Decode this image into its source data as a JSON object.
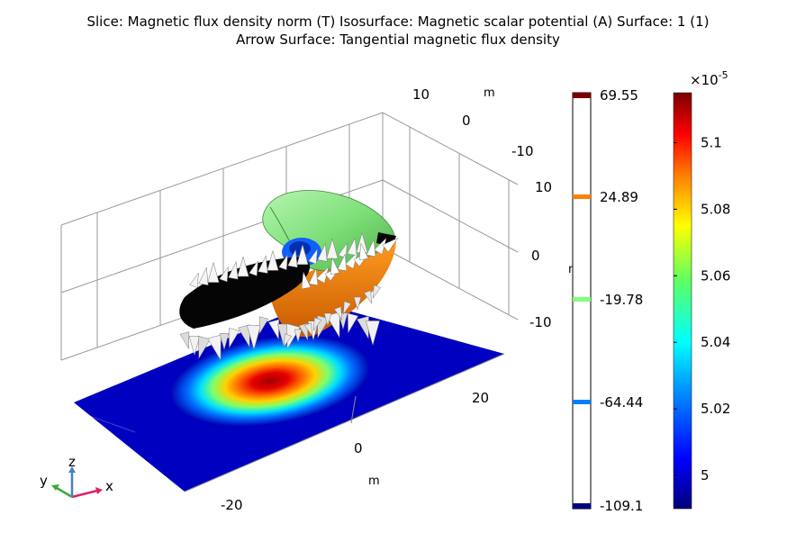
{
  "title": {
    "line1": "Slice: Magnetic flux density norm (T)  Isosurface: Magnetic scalar potential (A)  Surface: 1 (1)",
    "line2": "Arrow Surface: Tangential magnetic flux density"
  },
  "chart_data": {
    "type": "3d-scene",
    "axes": {
      "x": {
        "unit": "m",
        "ticks": [
          "-20",
          "0",
          "20"
        ]
      },
      "y": {
        "unit": "m",
        "ticks": [
          "10",
          "0",
          "-10"
        ]
      },
      "z": {
        "unit": "m",
        "ticks": [
          "10",
          "0",
          "-10"
        ]
      }
    },
    "isosurface_legend": {
      "labels": [
        "69.55",
        "24.89",
        "-19.78",
        "-64.44",
        "-109.1"
      ],
      "values": [
        69.55,
        24.89,
        -19.78,
        -64.44,
        -109.1
      ],
      "colors": [
        "#7a0000",
        "#ff8000",
        "#80ff80",
        "#0080ff",
        "#000080"
      ]
    },
    "slice_colorbar": {
      "exponent_label": "×10",
      "exponent": "-5",
      "tick_labels": [
        "5.1",
        "5.08",
        "5.06",
        "5.04",
        "5.02",
        "5"
      ],
      "tick_values": [
        5.1,
        5.08,
        5.06,
        5.04,
        5.02,
        5.0
      ],
      "min": 4.99,
      "max": 5.115,
      "colormap": "rainbow"
    }
  },
  "triad": {
    "x": "x",
    "y": "y",
    "z": "z"
  }
}
